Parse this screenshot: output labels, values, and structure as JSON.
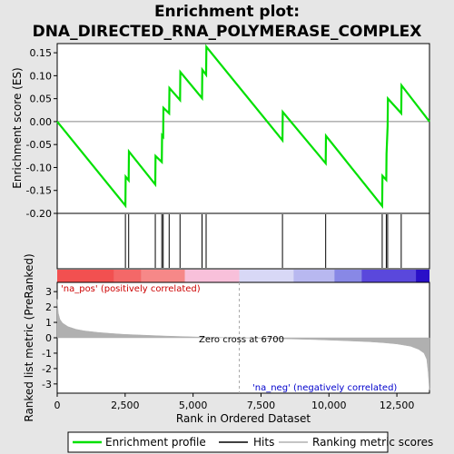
{
  "title_line1": "Enrichment plot:",
  "title_line2": "DNA_DIRECTED_RNA_POLYMERASE_COMPLEX",
  "colors": {
    "profile": "#00e000",
    "hits": "#000000",
    "metric": "#b0b0b0",
    "pos_text": "#cc0000",
    "neg_text": "#0000cc",
    "zero_line": "#aaaaaa"
  },
  "chart_data": {
    "type": "line",
    "x_total": 13700,
    "xlabel": "Rank in Ordered Dataset",
    "x_ticks": [
      0,
      2500,
      5000,
      7500,
      10000,
      12500
    ],
    "x_tick_labels": [
      "0",
      "2,500",
      "5,000",
      "7,500",
      "10,000",
      "12,500"
    ],
    "es_panel": {
      "ylabel": "Enrichment score (ES)",
      "ylim": [
        -0.2,
        0.17
      ],
      "y_ticks": [
        -0.2,
        -0.15,
        -0.1,
        -0.05,
        0.0,
        0.05,
        0.1,
        0.15
      ],
      "y_tick_labels": [
        "-0.20",
        "-0.15",
        "-0.10",
        "-0.05",
        "0.00",
        "0.05",
        "0.10",
        "0.15"
      ],
      "series": [
        {
          "name": "Enrichment profile",
          "x": [
            0,
            2510,
            2520,
            2630,
            2640,
            3610,
            3620,
            3850,
            3860,
            3900,
            3910,
            4120,
            4130,
            4520,
            4530,
            5330,
            5340,
            5480,
            5490,
            8290,
            8300,
            9880,
            9890,
            11960,
            11970,
            12110,
            12120,
            12160,
            12170,
            12660,
            12670,
            13700
          ],
          "y": [
            0.0,
            -0.183,
            -0.12,
            -0.128,
            -0.065,
            -0.137,
            -0.075,
            -0.088,
            -0.03,
            -0.033,
            0.03,
            0.018,
            0.073,
            0.047,
            0.108,
            0.051,
            0.113,
            0.102,
            0.163,
            -0.041,
            0.021,
            -0.091,
            -0.031,
            -0.184,
            -0.118,
            -0.127,
            -0.07,
            -0.01,
            0.05,
            0.018,
            0.079,
            0.0
          ]
        }
      ]
    },
    "hits": [
      2510,
      2630,
      3610,
      3850,
      3900,
      4120,
      4520,
      5330,
      5480,
      8290,
      9880,
      11960,
      12110,
      12160,
      12660
    ],
    "heatmap_blocks": [
      {
        "from": 0,
        "to": 2100,
        "color": "#f25050"
      },
      {
        "from": 2100,
        "to": 3100,
        "color": "#f46868"
      },
      {
        "from": 3100,
        "to": 4700,
        "color": "#f68888"
      },
      {
        "from": 4700,
        "to": 6700,
        "color": "#f8c0da"
      },
      {
        "from": 6700,
        "to": 8700,
        "color": "#d8d8f6"
      },
      {
        "from": 8700,
        "to": 10200,
        "color": "#b8b8f0"
      },
      {
        "from": 10200,
        "to": 11200,
        "color": "#8888e6"
      },
      {
        "from": 11200,
        "to": 13200,
        "color": "#5a48dc"
      },
      {
        "from": 13200,
        "to": 13700,
        "color": "#2a10c8"
      }
    ],
    "metric_panel": {
      "ylabel": "Ranked list metric (PreRanked)",
      "ylim": [
        -3.6,
        3.6
      ],
      "y_ticks": [
        -3,
        -2,
        -1,
        0,
        1,
        2,
        3
      ],
      "y_tick_labels": [
        "-3",
        "-2",
        "-1",
        "0",
        "1",
        "2",
        "3"
      ],
      "metric_x": [
        0,
        40,
        100,
        200,
        400,
        700,
        1000,
        1500,
        2000,
        2500,
        3000,
        4000,
        5000,
        6000,
        6700,
        7500,
        8500,
        9500,
        10500,
        11500,
        12000,
        12500,
        13000,
        13300,
        13500,
        13600,
        13650,
        13700
      ],
      "metric_y": [
        2.5,
        1.6,
        1.2,
        0.95,
        0.72,
        0.55,
        0.45,
        0.35,
        0.28,
        0.22,
        0.18,
        0.11,
        0.06,
        0.02,
        0.0,
        -0.03,
        -0.07,
        -0.12,
        -0.18,
        -0.26,
        -0.32,
        -0.4,
        -0.55,
        -0.75,
        -1.0,
        -1.4,
        -2.2,
        -3.4
      ],
      "pos_label": "'na_pos' (positively correlated)",
      "neg_label": "'na_neg' (negatively correlated)",
      "zero_cross_label": "Zero cross at 6700",
      "zero_cross": 6700
    },
    "legend": [
      "Enrichment profile",
      "Hits",
      "Ranking metric scores"
    ]
  }
}
